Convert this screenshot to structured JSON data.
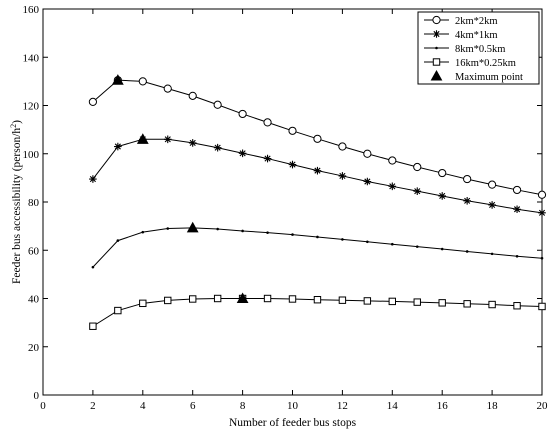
{
  "chart_data": {
    "type": "line",
    "title": "",
    "xlabel": "Number of feeder bus stops",
    "ylabel": "Feeder bus accessibility (person/h",
    "ylabel_sup": "2",
    "ylabel_tail": ")",
    "xlim": [
      0,
      20
    ],
    "ylim": [
      0,
      160
    ],
    "xticks": [
      0,
      2,
      4,
      6,
      8,
      10,
      12,
      14,
      16,
      18,
      20
    ],
    "yticks": [
      0,
      20,
      40,
      60,
      80,
      100,
      120,
      140,
      160
    ],
    "grid": false,
    "legend_position": "top-right",
    "x": [
      2,
      3,
      4,
      5,
      6,
      7,
      8,
      9,
      10,
      11,
      12,
      13,
      14,
      15,
      16,
      17,
      18,
      19,
      20
    ],
    "series": [
      {
        "name": "2km*2km",
        "marker": "circle",
        "values": [
          121.5,
          130.5,
          130,
          127,
          124,
          120.3,
          116.5,
          113,
          109.5,
          106.2,
          103,
          100,
          97.2,
          94.5,
          92,
          89.5,
          87.2,
          85,
          83
        ]
      },
      {
        "name": "4km*1km",
        "marker": "asterisk",
        "values": [
          89.5,
          103,
          106,
          106,
          104.5,
          102.5,
          100.2,
          98,
          95.5,
          93,
          90.8,
          88.5,
          86.5,
          84.5,
          82.5,
          80.5,
          78.8,
          77,
          75.5
        ]
      },
      {
        "name": "8km*0.5km",
        "marker": "dot",
        "values": [
          53,
          64,
          67.5,
          69,
          69.3,
          68.8,
          68,
          67.3,
          66.5,
          65.5,
          64.5,
          63.5,
          62.5,
          61.5,
          60.5,
          59.5,
          58.5,
          57.5,
          56.7
        ]
      },
      {
        "name": "16km*0.25km",
        "marker": "square",
        "values": [
          28.5,
          35,
          38,
          39.2,
          39.8,
          40,
          40,
          40,
          39.8,
          39.5,
          39.3,
          39,
          38.8,
          38.5,
          38.2,
          37.8,
          37.5,
          37,
          36.7
        ]
      }
    ],
    "maximum_points": {
      "name": "Maximum point",
      "marker": "triangle",
      "points": [
        {
          "x": 3,
          "y": 130.5
        },
        {
          "x": 4,
          "y": 106
        },
        {
          "x": 6,
          "y": 69.3
        },
        {
          "x": 8,
          "y": 40
        }
      ]
    }
  }
}
